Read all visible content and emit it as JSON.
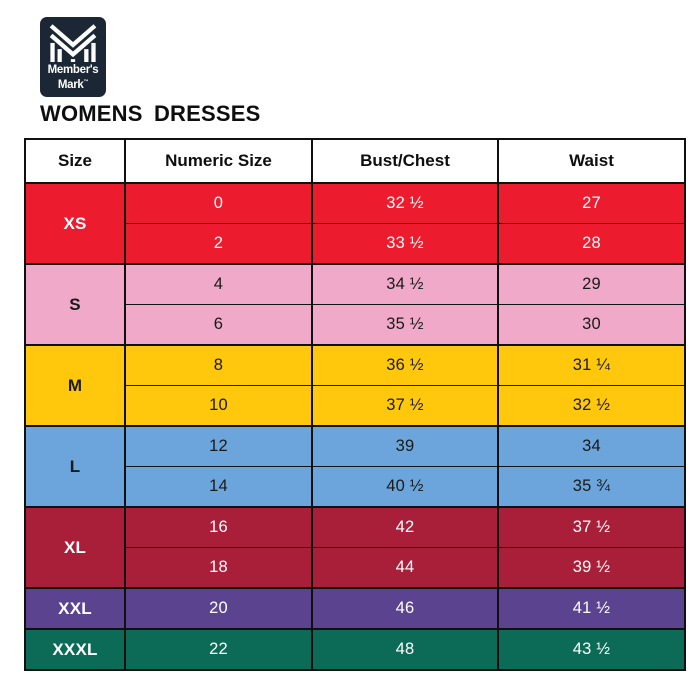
{
  "logo": {
    "brand_line1": "Member's",
    "brand_line2": "Mark",
    "trademark": "™",
    "bg_color": "#1B2734",
    "mark_color": "#ffffff"
  },
  "title": "WOMENS DRESSES",
  "chart_data": {
    "type": "table",
    "title": "WOMENS DRESSES",
    "columns": [
      "Size",
      "Numeric Size",
      "Bust/Chest",
      "Waist"
    ],
    "groups": [
      {
        "size": "XS",
        "row_color": "#EC1B2E",
        "text_color": "#FFFFFF",
        "rows": [
          [
            "0",
            "32 ½",
            "27"
          ],
          [
            "2",
            "33 ½",
            "28"
          ]
        ]
      },
      {
        "size": "S",
        "row_color": "#F0A9C9",
        "text_color": "#1A1A1A",
        "rows": [
          [
            "4",
            "34 ½",
            "29"
          ],
          [
            "6",
            "35 ½",
            "30"
          ]
        ]
      },
      {
        "size": "M",
        "row_color": "#FFC80D",
        "text_color": "#1A1A1A",
        "rows": [
          [
            "8",
            "36 ½",
            "31 ¼"
          ],
          [
            "10",
            "37 ½",
            "32 ½"
          ]
        ]
      },
      {
        "size": "L",
        "row_color": "#6BA5DB",
        "text_color": "#1A1A1A",
        "rows": [
          [
            "12",
            "39",
            "34"
          ],
          [
            "14",
            "40 ½",
            "35 ¾"
          ]
        ]
      },
      {
        "size": "XL",
        "row_color": "#A91E38",
        "text_color": "#FFFFFF",
        "rows": [
          [
            "16",
            "42",
            "37 ½"
          ],
          [
            "18",
            "44",
            "39 ½"
          ]
        ]
      },
      {
        "size": "XXL",
        "row_color": "#5B4390",
        "text_color": "#FFFFFF",
        "rows": [
          [
            "20",
            "46",
            "41 ½"
          ]
        ]
      },
      {
        "size": "XXXL",
        "row_color": "#0B6B57",
        "text_color": "#FFFFFF",
        "rows": [
          [
            "22",
            "48",
            "43 ½"
          ]
        ]
      }
    ]
  }
}
